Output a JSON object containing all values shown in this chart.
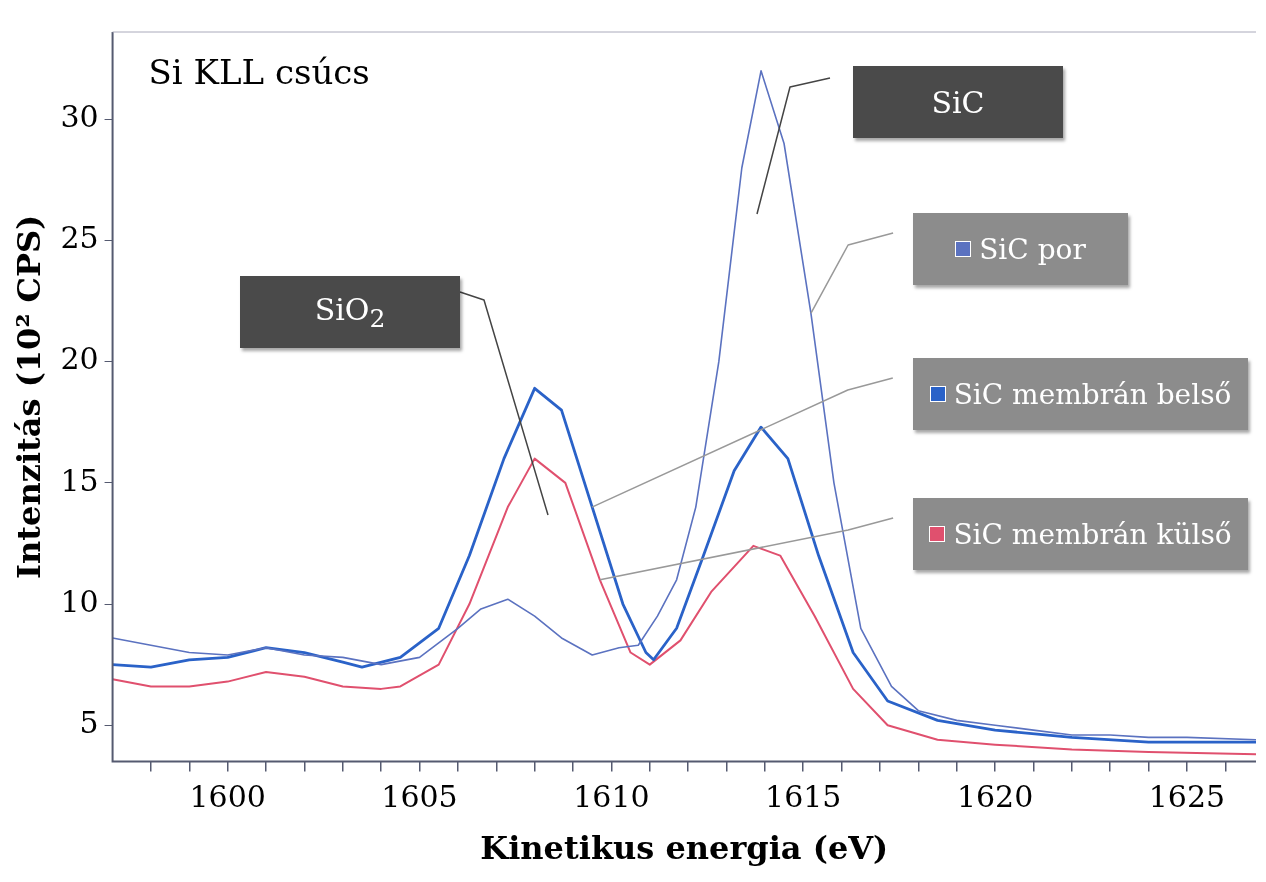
{
  "chart_data": {
    "type": "line",
    "title": "Si KLL csúcs",
    "xlabel": "Kinetikus energia (eV)",
    "ylabel": "Intenzitás (10² CPS)",
    "xlim": [
      1597,
      1626.8
    ],
    "ylim": [
      3.5,
      33.6
    ],
    "xticks": [
      {
        "value": 1598,
        "label": null
      },
      {
        "value": 1599,
        "label": null
      },
      1600,
      {
        "value": 1601,
        "label": null
      },
      {
        "value": 1602,
        "label": null
      },
      {
        "value": 1603,
        "label": null
      },
      {
        "value": 1604,
        "label": null
      },
      1605,
      {
        "value": 1606,
        "label": null
      },
      {
        "value": 1607,
        "label": null
      },
      {
        "value": 1608,
        "label": null
      },
      {
        "value": 1609,
        "label": null
      },
      1610,
      {
        "value": 1611,
        "label": null
      },
      {
        "value": 1612,
        "label": null
      },
      {
        "value": 1613,
        "label": null
      },
      {
        "value": 1614,
        "label": null
      },
      1615,
      {
        "value": 1616,
        "label": null
      },
      {
        "value": 1617,
        "label": null
      },
      {
        "value": 1618,
        "label": null
      },
      {
        "value": 1619,
        "label": null
      },
      1620,
      {
        "value": 1621,
        "label": null
      },
      {
        "value": 1622,
        "label": null
      },
      {
        "value": 1623,
        "label": null
      },
      {
        "value": 1624,
        "label": null
      },
      1625,
      {
        "value": 1626,
        "label": null
      }
    ],
    "yticks": [
      5,
      10,
      15,
      20,
      25,
      30
    ],
    "grid": false,
    "legend": "right",
    "marker": "none",
    "line_style": "solid",
    "annotations": [
      "SiC",
      "SiO$_{2}$"
    ],
    "series": [
      {
        "name": "SiC por",
        "color": "#5b72c0",
        "x": [
          1597,
          1598,
          1599,
          1600,
          1601,
          1602,
          1603,
          1604,
          1605,
          1606,
          1606.6,
          1607.3,
          1608,
          1608.7,
          1609.5,
          1610.2,
          1610.7,
          1611.2,
          1611.7,
          1612.2,
          1612.8,
          1613.4,
          1613.9,
          1614.5,
          1615.2,
          1615.8,
          1616.5,
          1617.3,
          1618,
          1619,
          1620,
          1621,
          1622,
          1623,
          1624,
          1625,
          1626.8
        ],
        "values": [
          8.6,
          8.3,
          8.0,
          7.9,
          8.2,
          7.9,
          7.8,
          7.5,
          7.8,
          9.0,
          9.8,
          10.2,
          9.5,
          8.6,
          7.9,
          8.2,
          8.3,
          9.5,
          11,
          14,
          20,
          28,
          32,
          29,
          22,
          15,
          9,
          6.6,
          5.6,
          5.2,
          5.0,
          4.8,
          4.6,
          4.6,
          4.5,
          4.5,
          4.4
        ]
      },
      {
        "name": "SiC membrán belső",
        "color": "#2a62c8",
        "x": [
          1597,
          1598,
          1599,
          1600,
          1601,
          1602,
          1603,
          1603.5,
          1604.5,
          1605.5,
          1606.3,
          1607.2,
          1608,
          1608.7,
          1609.5,
          1610.3,
          1610.9,
          1611.1,
          1611.7,
          1612.4,
          1613.2,
          1613.9,
          1614.6,
          1615.4,
          1616.3,
          1617.2,
          1618.5,
          1620,
          1622,
          1624,
          1626.8
        ],
        "values": [
          7.5,
          7.4,
          7.7,
          7.8,
          8.2,
          8.0,
          7.6,
          7.4,
          7.8,
          9.0,
          12,
          16,
          18.9,
          18,
          14,
          10,
          8,
          7.7,
          9,
          12,
          15.5,
          17.3,
          16,
          12,
          8,
          6,
          5.2,
          4.8,
          4.5,
          4.3,
          4.3
        ]
      },
      {
        "name": "SiC membrán külső",
        "color": "#e0506e",
        "x": [
          1597,
          1598,
          1599,
          1600,
          1601,
          1602,
          1603,
          1604,
          1604.5,
          1605.5,
          1606.3,
          1607.3,
          1608,
          1608.8,
          1609.7,
          1610.5,
          1611,
          1611.8,
          1612.6,
          1613.7,
          1614.4,
          1615.3,
          1616.3,
          1617.2,
          1618.5,
          1620,
          1622,
          1624,
          1626.8
        ],
        "values": [
          6.9,
          6.6,
          6.6,
          6.8,
          7.2,
          7.0,
          6.6,
          6.5,
          6.6,
          7.5,
          10,
          14,
          16,
          15,
          11,
          8,
          7.5,
          8.5,
          10.5,
          12.4,
          12,
          9.5,
          6.5,
          5,
          4.4,
          4.2,
          4.0,
          3.9,
          3.8
        ]
      }
    ]
  }
}
